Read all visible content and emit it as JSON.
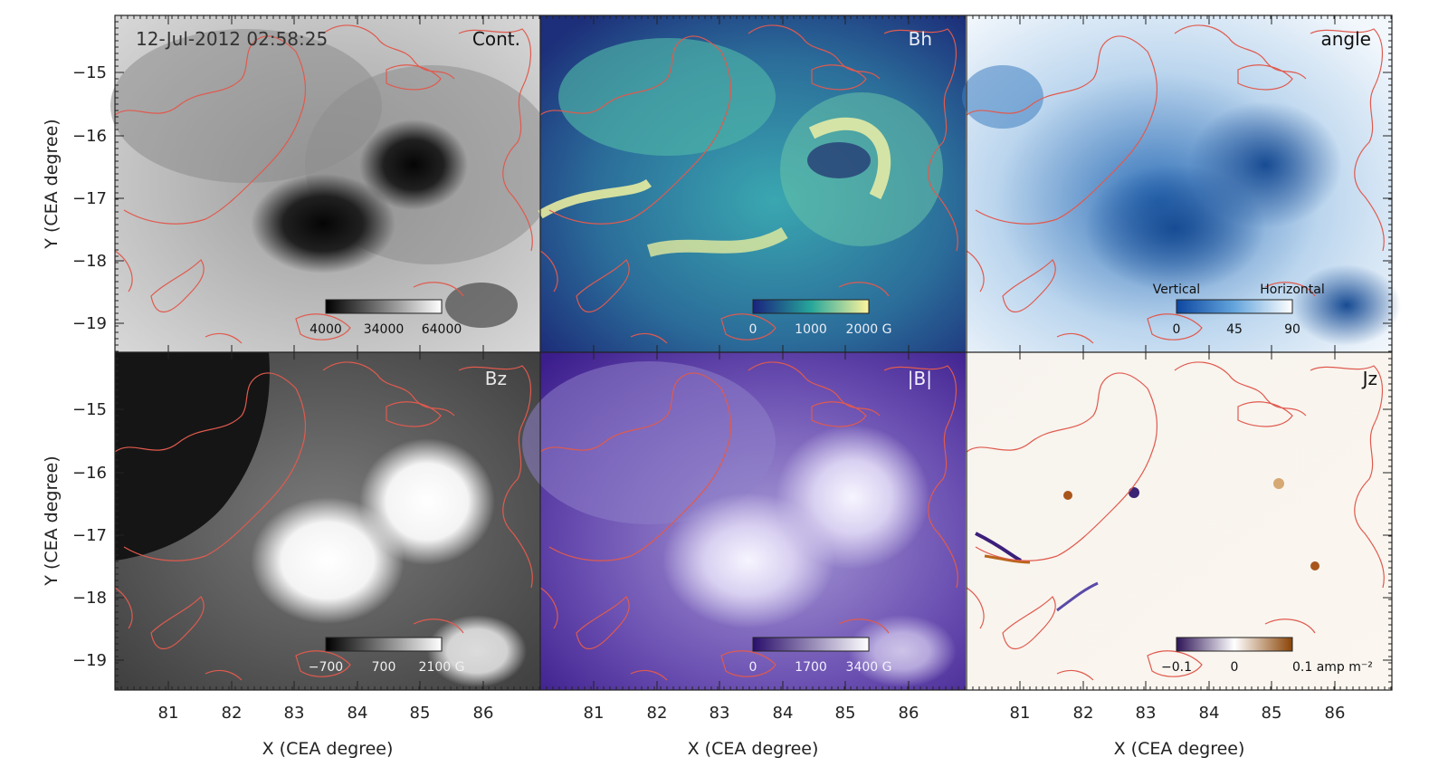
{
  "timestamp": "12-Jul-2012 02:58:25",
  "panels": [
    {
      "id": "cont",
      "label": "Cont.",
      "colormap": "gray",
      "colorbar": {
        "ticks": [
          "4000",
          "34000",
          "64000"
        ],
        "ends": [
          "",
          ""
        ]
      }
    },
    {
      "id": "bh",
      "label": "Bh",
      "colormap": "viridis-like",
      "colorbar": {
        "ticks": [
          "0",
          "1000",
          "2000 G"
        ],
        "ends": [
          "",
          ""
        ]
      }
    },
    {
      "id": "angle",
      "label": "angle",
      "colormap": "blues",
      "colorbar": {
        "ticks": [
          "0",
          "45",
          "90"
        ],
        "ends": [
          "Vertical",
          "Horizontal"
        ]
      }
    },
    {
      "id": "bz",
      "label": "Bz",
      "colormap": "gray",
      "colorbar": {
        "ticks": [
          "−700",
          "700",
          "2100 G"
        ],
        "ends": [
          "",
          ""
        ]
      }
    },
    {
      "id": "b",
      "label": "|B|",
      "colormap": "purples",
      "colorbar": {
        "ticks": [
          "0",
          "1700",
          "3400 G"
        ],
        "ends": [
          "",
          ""
        ]
      }
    },
    {
      "id": "jz",
      "label": "Jz",
      "colormap": "purple-white-orange",
      "colorbar": {
        "ticks": [
          "−0.1",
          "0",
          "0.1 amp m⁻²"
        ],
        "ends": [
          "",
          ""
        ]
      }
    }
  ],
  "axes": {
    "xlabel": "X (CEA degree)",
    "ylabel": "Y (CEA degree)",
    "xticks": [
      "81",
      "82",
      "83",
      "84",
      "85",
      "86"
    ],
    "yticks": [
      "−15",
      "−16",
      "−17",
      "−18",
      "−19"
    ]
  },
  "colors": {
    "contour": "#e05a4e",
    "frame": "#222222"
  }
}
